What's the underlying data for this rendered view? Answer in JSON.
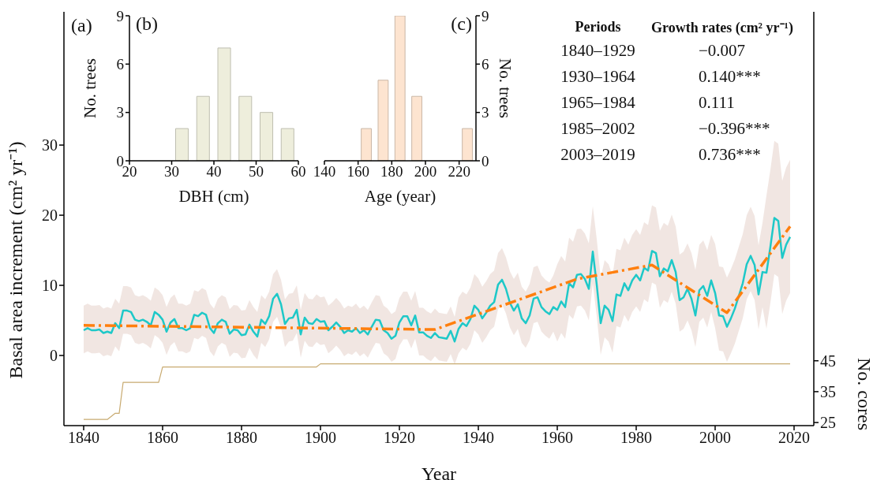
{
  "chart_data": [
    {
      "type": "line",
      "title": "(a)",
      "xlabel": "Year",
      "ylabel": "Basal area increment (cm² yr⁻¹)",
      "y2label": "No. cores",
      "x": [
        1840,
        1841,
        1842,
        1843,
        1844,
        1845,
        1846,
        1847,
        1848,
        1849,
        1850,
        1851,
        1852,
        1853,
        1854,
        1855,
        1856,
        1857,
        1858,
        1859,
        1860,
        1861,
        1862,
        1863,
        1864,
        1865,
        1866,
        1867,
        1868,
        1869,
        1870,
        1871,
        1872,
        1873,
        1874,
        1875,
        1876,
        1877,
        1878,
        1879,
        1880,
        1881,
        1882,
        1883,
        1884,
        1885,
        1886,
        1887,
        1888,
        1889,
        1890,
        1891,
        1892,
        1893,
        1894,
        1895,
        1896,
        1897,
        1898,
        1899,
        1900,
        1901,
        1902,
        1903,
        1904,
        1905,
        1906,
        1907,
        1908,
        1909,
        1910,
        1911,
        1912,
        1913,
        1914,
        1915,
        1916,
        1917,
        1918,
        1919,
        1920,
        1921,
        1922,
        1923,
        1924,
        1925,
        1926,
        1927,
        1928,
        1929,
        1930,
        1931,
        1932,
        1933,
        1934,
        1935,
        1936,
        1937,
        1938,
        1939,
        1940,
        1941,
        1942,
        1943,
        1944,
        1945,
        1946,
        1947,
        1948,
        1949,
        1950,
        1951,
        1952,
        1953,
        1954,
        1955,
        1956,
        1957,
        1958,
        1959,
        1960,
        1961,
        1962,
        1963,
        1964,
        1965,
        1966,
        1967,
        1968,
        1969,
        1970,
        1971,
        1972,
        1973,
        1974,
        1975,
        1976,
        1977,
        1978,
        1979,
        1980,
        1981,
        1982,
        1983,
        1984,
        1985,
        1986,
        1987,
        1988,
        1989,
        1990,
        1991,
        1992,
        1993,
        1994,
        1995,
        1996,
        1997,
        1998,
        1999,
        2000,
        2001,
        2002,
        2003,
        2004,
        2005,
        2006,
        2007,
        2008,
        2009,
        2010,
        2011,
        2012,
        2013,
        2014,
        2015,
        2016,
        2017,
        2018,
        2019
      ],
      "series": [
        {
          "type": "line",
          "color": "#1ec8c8",
          "values": [
            3.6,
            3.9,
            3.6,
            3.6,
            3.7,
            3.2,
            3.4,
            3.2,
            4.6,
            3.9,
            6.4,
            6.4,
            6.2,
            5.1,
            4.9,
            5.1,
            4.8,
            4.3,
            6.2,
            5.8,
            5.1,
            3.4,
            4.7,
            5.2,
            3.9,
            3.9,
            3.6,
            3.9,
            5.8,
            5.6,
            6.1,
            5.8,
            3.9,
            3.2,
            4.6,
            5.1,
            4.8,
            3.1,
            3.7,
            3.6,
            2.9,
            3.0,
            4.4,
            3.4,
            2.7,
            5.1,
            4.5,
            5.6,
            8.1,
            8.8,
            7.3,
            4.5,
            5.3,
            5.4,
            6.5,
            3.0,
            5.4,
            4.6,
            4.5,
            5.2,
            4.8,
            4.9,
            3.6,
            4.1,
            4.7,
            4.1,
            3.2,
            3.6,
            3.4,
            3.9,
            3.2,
            3.6,
            3.0,
            4.1,
            5.1,
            5.0,
            3.6,
            3.2,
            2.4,
            2.8,
            4.7,
            5.6,
            5.6,
            4.3,
            5.7,
            3.3,
            3.3,
            2.8,
            2.5,
            3.2,
            2.6,
            2.5,
            2.4,
            3.5,
            2.0,
            3.8,
            4.6,
            4.2,
            5.2,
            7.1,
            6.5,
            5.3,
            6.1,
            7.1,
            7.6,
            10.1,
            10.8,
            9.5,
            7.5,
            6.4,
            7.3,
            5.3,
            4.6,
            5.7,
            8.1,
            8.3,
            6.9,
            6.3,
            5.9,
            6.9,
            6.5,
            7.7,
            6.9,
            10.3,
            9.7,
            11.5,
            11.6,
            10.9,
            9.5,
            14.8,
            10.1,
            4.6,
            7.1,
            6.5,
            4.9,
            8.7,
            8.5,
            10.3,
            9.3,
            10.7,
            11.5,
            10.7,
            12.5,
            12.1,
            14.9,
            14.6,
            11.3,
            12.4,
            12.0,
            13.6,
            11.9,
            7.9,
            8.3,
            9.5,
            8.1,
            5.7,
            9.3,
            9.9,
            8.5,
            10.7,
            8.9,
            5.7,
            5.6,
            4.1,
            5.3,
            6.7,
            8.5,
            10.3,
            13.0,
            14.2,
            12.9,
            8.7,
            11.9,
            11.8,
            15.5,
            19.6,
            19.2,
            13.9,
            15.8,
            16.9
          ],
          "lower": [
            0.3,
            0.6,
            0.3,
            0.3,
            0.4,
            -0.1,
            0.1,
            -0.1,
            1.3,
            0.6,
            3.1,
            3.1,
            2.9,
            1.8,
            1.6,
            1.8,
            1.5,
            1.0,
            2.9,
            2.5,
            1.8,
            0.1,
            1.4,
            1.9,
            0.6,
            0.6,
            0.3,
            0.6,
            2.5,
            2.3,
            2.8,
            2.5,
            0.6,
            -0.1,
            1.3,
            1.8,
            1.5,
            -0.2,
            0.4,
            0.3,
            -0.4,
            -0.3,
            1.1,
            0.1,
            -0.6,
            1.8,
            1.2,
            2.3,
            4.8,
            5.5,
            4.0,
            1.2,
            2.0,
            2.1,
            3.2,
            -0.3,
            2.1,
            1.3,
            1.2,
            1.9,
            1.5,
            1.6,
            0.3,
            0.8,
            1.4,
            0.8,
            -0.1,
            0.3,
            0.1,
            0.6,
            -0.1,
            0.3,
            -0.3,
            0.8,
            1.8,
            1.7,
            0.3,
            -0.1,
            -0.9,
            -0.5,
            1.4,
            2.3,
            2.3,
            1.0,
            2.4,
            0.0,
            0.0,
            -0.5,
            -0.8,
            -0.1,
            -0.7,
            -0.8,
            -0.9,
            0.2,
            -1.3,
            0.3,
            1.1,
            0.7,
            1.7,
            3.6,
            3.0,
            1.8,
            2.6,
            3.6,
            4.1,
            6.6,
            7.3,
            6.0,
            4.0,
            2.9,
            3.8,
            1.8,
            1.1,
            2.2,
            4.6,
            4.8,
            3.4,
            2.8,
            2.4,
            3.4,
            2.0,
            3.2,
            2.4,
            5.8,
            5.2,
            7.0,
            7.1,
            6.4,
            5.0,
            10.3,
            5.6,
            0.1,
            2.6,
            2.0,
            0.4,
            4.2,
            4.0,
            5.8,
            4.8,
            6.2,
            7.0,
            6.2,
            8.0,
            7.6,
            10.4,
            10.1,
            6.8,
            7.9,
            7.5,
            9.1,
            7.4,
            3.4,
            3.8,
            5.0,
            3.6,
            1.2,
            4.8,
            5.4,
            4.0,
            6.2,
            3.9,
            0.7,
            0.6,
            -0.9,
            0.3,
            1.7,
            3.5,
            5.3,
            8.0,
            9.2,
            7.9,
            3.7,
            6.9,
            3.8,
            7.5,
            11.6,
            11.2,
            5.9,
            7.8,
            8.9
          ],
          "upper": [
            7.1,
            7.4,
            7.1,
            7.1,
            7.2,
            6.7,
            6.9,
            6.7,
            8.1,
            7.4,
            9.9,
            9.9,
            9.7,
            8.6,
            8.4,
            8.6,
            8.3,
            7.8,
            9.7,
            9.3,
            8.6,
            6.9,
            8.2,
            8.7,
            7.4,
            7.4,
            7.1,
            7.4,
            9.3,
            9.1,
            9.6,
            9.3,
            7.4,
            6.7,
            8.1,
            8.6,
            8.3,
            6.6,
            7.2,
            7.1,
            6.4,
            6.5,
            7.9,
            6.9,
            6.2,
            8.6,
            8.0,
            9.1,
            11.6,
            12.3,
            10.8,
            8.0,
            8.8,
            8.9,
            10.0,
            6.5,
            8.9,
            8.1,
            8.0,
            8.7,
            8.3,
            8.4,
            7.1,
            7.6,
            8.2,
            7.6,
            6.7,
            7.1,
            6.9,
            7.4,
            6.7,
            7.1,
            6.5,
            7.6,
            8.6,
            8.5,
            7.1,
            6.7,
            5.9,
            6.3,
            8.2,
            9.1,
            9.1,
            7.8,
            9.2,
            6.8,
            6.8,
            6.3,
            6.0,
            6.7,
            6.1,
            6.0,
            5.9,
            7.0,
            5.5,
            8.3,
            9.1,
            8.7,
            9.7,
            11.6,
            11.0,
            9.8,
            10.6,
            11.6,
            12.1,
            14.6,
            15.3,
            14.0,
            12.0,
            10.9,
            11.8,
            9.8,
            9.1,
            10.2,
            12.6,
            12.8,
            11.4,
            10.8,
            10.4,
            11.4,
            13.0,
            14.2,
            13.4,
            16.8,
            16.2,
            18.0,
            18.1,
            17.4,
            16.0,
            21.3,
            16.6,
            11.1,
            13.6,
            13.0,
            11.4,
            15.2,
            15.0,
            16.8,
            15.8,
            17.2,
            18.0,
            17.2,
            19.0,
            18.6,
            21.4,
            21.1,
            17.8,
            18.9,
            18.5,
            20.1,
            18.4,
            14.4,
            14.8,
            16.0,
            14.6,
            12.2,
            15.8,
            16.4,
            15.0,
            17.2,
            15.9,
            12.7,
            12.6,
            11.1,
            12.3,
            13.7,
            15.5,
            17.3,
            20.0,
            21.2,
            19.9,
            15.7,
            18.9,
            22.8,
            26.5,
            30.6,
            30.2,
            24.9,
            26.8,
            27.9
          ]
        },
        {
          "type": "line",
          "color": "#ff7f0e",
          "line_style": "dashed",
          "x": [
            1840,
            1929,
            1965,
            1984,
            2003,
            2019
          ],
          "values": [
            4.3,
            3.7,
            10.9,
            12.9,
            6.1,
            18.4
          ]
        },
        {
          "type": "line",
          "color": "#c8aa70",
          "axis": "y2",
          "x": [
            1840,
            1846,
            1848,
            1849,
            1850,
            1859,
            1860,
            1899,
            1900,
            2019
          ],
          "values": [
            26,
            26,
            28,
            28,
            38,
            38,
            43,
            43,
            44,
            44
          ]
        }
      ],
      "xlim": [
        1835,
        2025
      ],
      "xticks": [
        1840,
        1860,
        1880,
        1900,
        1920,
        1940,
        1960,
        1980,
        2000,
        2020
      ],
      "ylim": [
        -10,
        49
      ],
      "yticks": [
        0,
        10,
        20,
        30
      ],
      "y2lim": [
        24,
        158
      ],
      "y2ticks": [
        25,
        35,
        45
      ]
    },
    {
      "type": "histogram",
      "title": "(b)",
      "xlabel": "DBH (cm)",
      "ylabel": "No. trees",
      "bins": [
        30,
        35,
        40,
        45,
        50,
        55,
        60
      ],
      "values": [
        2,
        4,
        7,
        4,
        3,
        2
      ],
      "color": "#eeeedc",
      "xlim": [
        20,
        60
      ],
      "xticks": [
        20,
        30,
        40,
        50,
        60
      ],
      "ylim": [
        0,
        9
      ],
      "yticks": [
        0,
        3,
        6,
        9
      ]
    },
    {
      "type": "histogram",
      "title": "(c)",
      "xlabel": "Age (year)",
      "y2label": "No. trees",
      "bins": [
        160,
        170,
        180,
        190,
        200,
        210,
        220,
        230
      ],
      "series": [
        {
          "color": "#fde4d0",
          "axis": "y2",
          "values": [
            2,
            5,
            9,
            4,
            0,
            0,
            2
          ]
        }
      ],
      "xlim": [
        140,
        230
      ],
      "xticks": [
        140,
        160,
        180,
        200,
        220
      ],
      "y2lim": [
        0,
        9
      ],
      "y2ticks": [
        0,
        3,
        6,
        9
      ]
    },
    {
      "type": "other",
      "annotations": [
        "Periods",
        "Growth rates (cm² yr⁻¹)",
        "1840–1929",
        "−0.007",
        "1930–1964",
        "0.140***",
        "1965–1984",
        "0.111",
        "1985–2002",
        "−0.396***",
        "2003–2019",
        "0.736***"
      ]
    }
  ]
}
